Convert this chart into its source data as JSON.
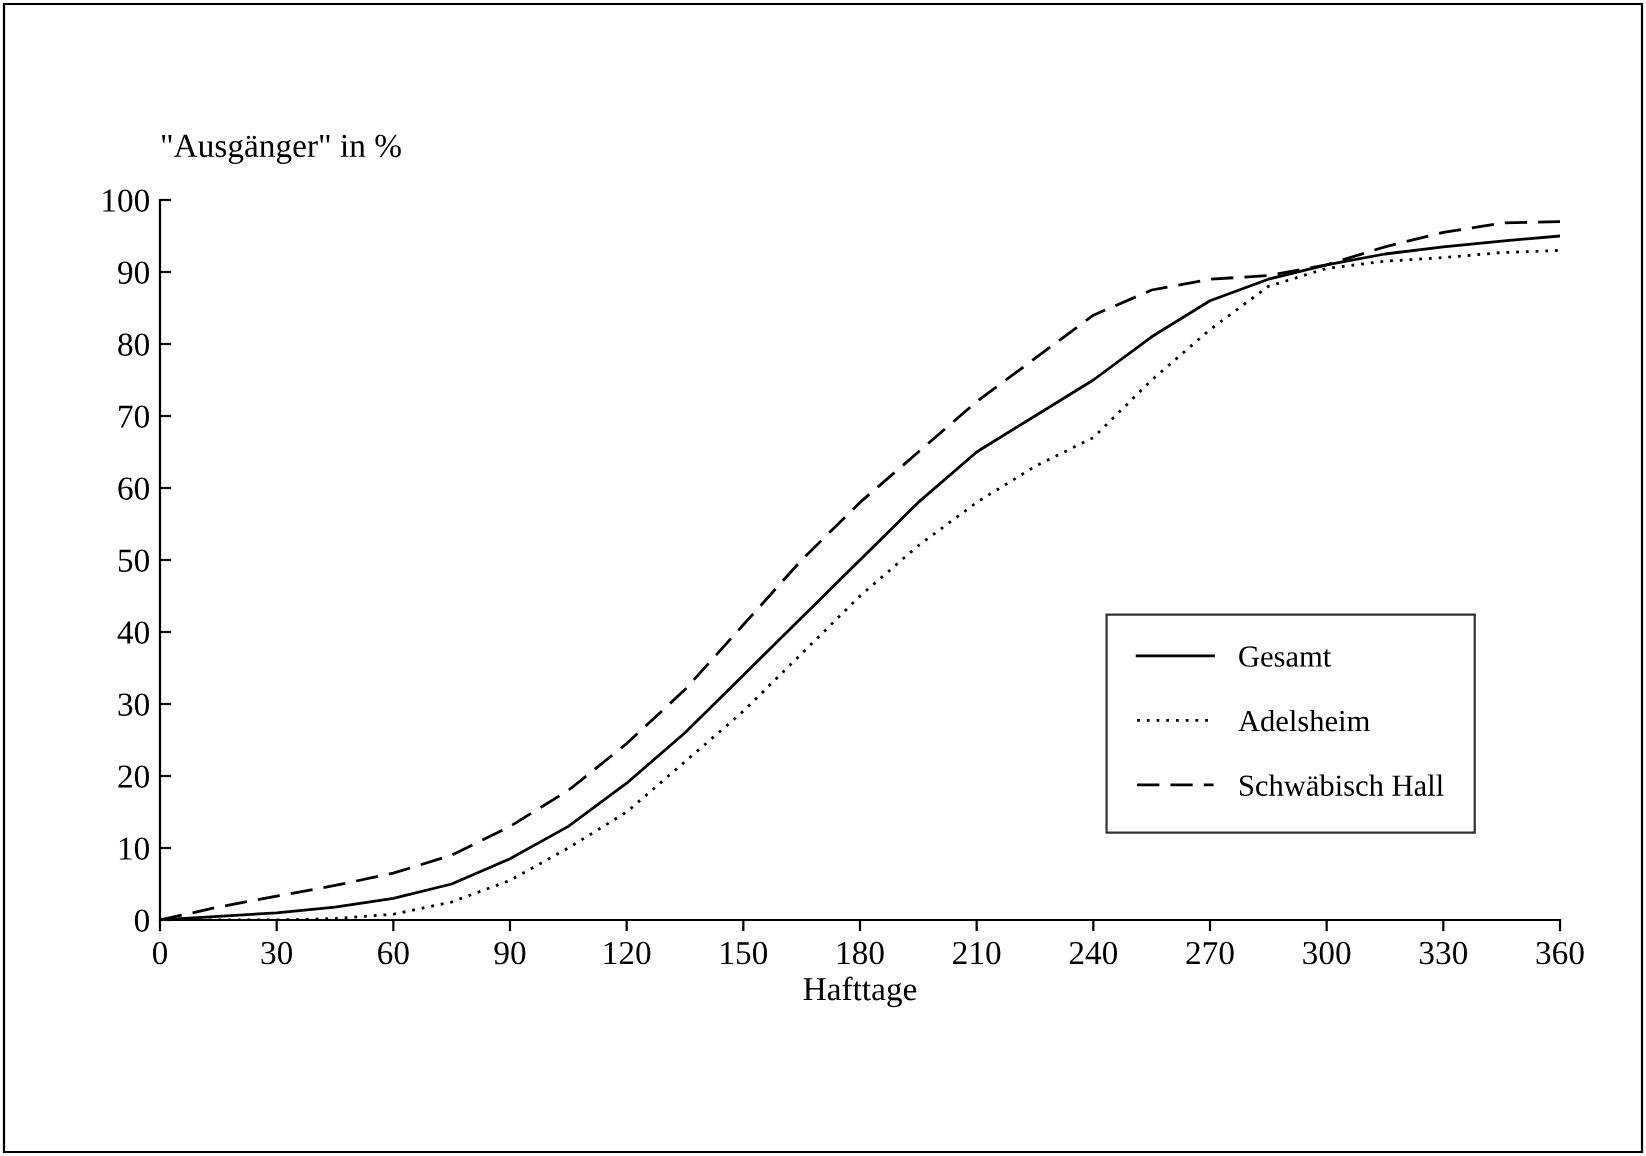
{
  "chart_data": {
    "type": "line",
    "ylabel": "\"Ausgänger\" in %",
    "xlabel": "Hafttage",
    "x": [
      0,
      15,
      30,
      45,
      60,
      75,
      90,
      105,
      120,
      135,
      150,
      165,
      180,
      195,
      210,
      225,
      240,
      255,
      270,
      285,
      300,
      315,
      330,
      345,
      360
    ],
    "series": [
      {
        "name": "Gesamt",
        "color": "#000000",
        "line_style": "solid",
        "values": [
          0,
          0.5,
          1,
          1.8,
          3,
          5,
          8.5,
          13,
          19,
          26,
          34,
          42,
          50,
          58,
          65,
          70,
          75,
          81,
          86,
          89,
          91,
          92.5,
          93.5,
          94.3,
          95
        ]
      },
      {
        "name": "Adelsheim",
        "color": "#000000",
        "line_style": "dotted",
        "values": [
          0,
          0,
          0,
          0.2,
          0.8,
          2.5,
          5.5,
          10,
          15,
          22,
          29,
          37,
          45,
          52,
          58,
          63,
          67,
          75,
          82,
          88,
          90.5,
          91.5,
          92,
          92.7,
          93
        ]
      },
      {
        "name": "Schwäbisch Hall",
        "color": "#000000",
        "line_style": "dashed",
        "values": [
          0,
          1.8,
          3.3,
          4.8,
          6.5,
          9,
          13,
          18,
          24.5,
          32,
          41,
          50,
          58,
          65,
          72,
          78,
          84,
          87.5,
          89,
          89.5,
          91,
          93.5,
          95.5,
          96.8,
          97
        ]
      }
    ],
    "xlim": [
      0,
      360
    ],
    "xticks": [
      0,
      30,
      60,
      90,
      120,
      150,
      180,
      210,
      240,
      270,
      300,
      330,
      360
    ],
    "ylim": [
      0,
      100
    ],
    "yticks": [
      0,
      10,
      20,
      30,
      40,
      50,
      60,
      70,
      80,
      90,
      100
    ],
    "legend": "bottom right",
    "grid": false,
    "marker": "none"
  }
}
